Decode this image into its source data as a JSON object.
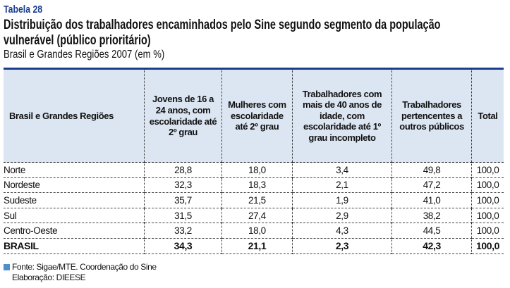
{
  "label": "Tabela 28",
  "title": [
    "Distribuição dos trabalhadores encaminhados pelo Sine segundo segmento da população",
    "vulnerável (público prioritário)"
  ],
  "subtitle": "Brasil e Grandes Regiões 2007 (em %)",
  "colors": {
    "accent": "#1b3d8f",
    "header_bg": "#dce6f2",
    "bullet": "#4f8fcc"
  },
  "table": {
    "headers": [
      "Brasil e Grandes Regiões",
      "Jovens de 16 a 24 anos, com escolaridade até 2º grau",
      "Mulheres com escolaridade até 2º grau",
      "Trabalhadores com mais de 40 anos de idade, com escolaridade até 1º grau incompleto",
      "Trabalhadores pertencentes a outros públicos",
      "Total"
    ],
    "rows": [
      [
        "Norte",
        "28,8",
        "18,0",
        "3,4",
        "49,8",
        "100,0"
      ],
      [
        "Nordeste",
        "32,3",
        "18,3",
        "2,1",
        "47,2",
        "100,0"
      ],
      [
        "Sudeste",
        "35,7",
        "21,5",
        "1,9",
        "41,0",
        "100,0"
      ],
      [
        "Sul",
        "31,5",
        "27,4",
        "2,9",
        "38,2",
        "100,0"
      ],
      [
        "Centro-Oeste",
        "33,2",
        "18,0",
        "4,3",
        "44,5",
        "100,0"
      ],
      [
        "BRASIL",
        "34,3",
        "21,1",
        "2,3",
        "42,3",
        "100,0"
      ]
    ]
  },
  "footer": {
    "source": "Fonte: Sigae/MTE. Coordenação do Sine",
    "author": "Elaboração: DIEESE"
  }
}
